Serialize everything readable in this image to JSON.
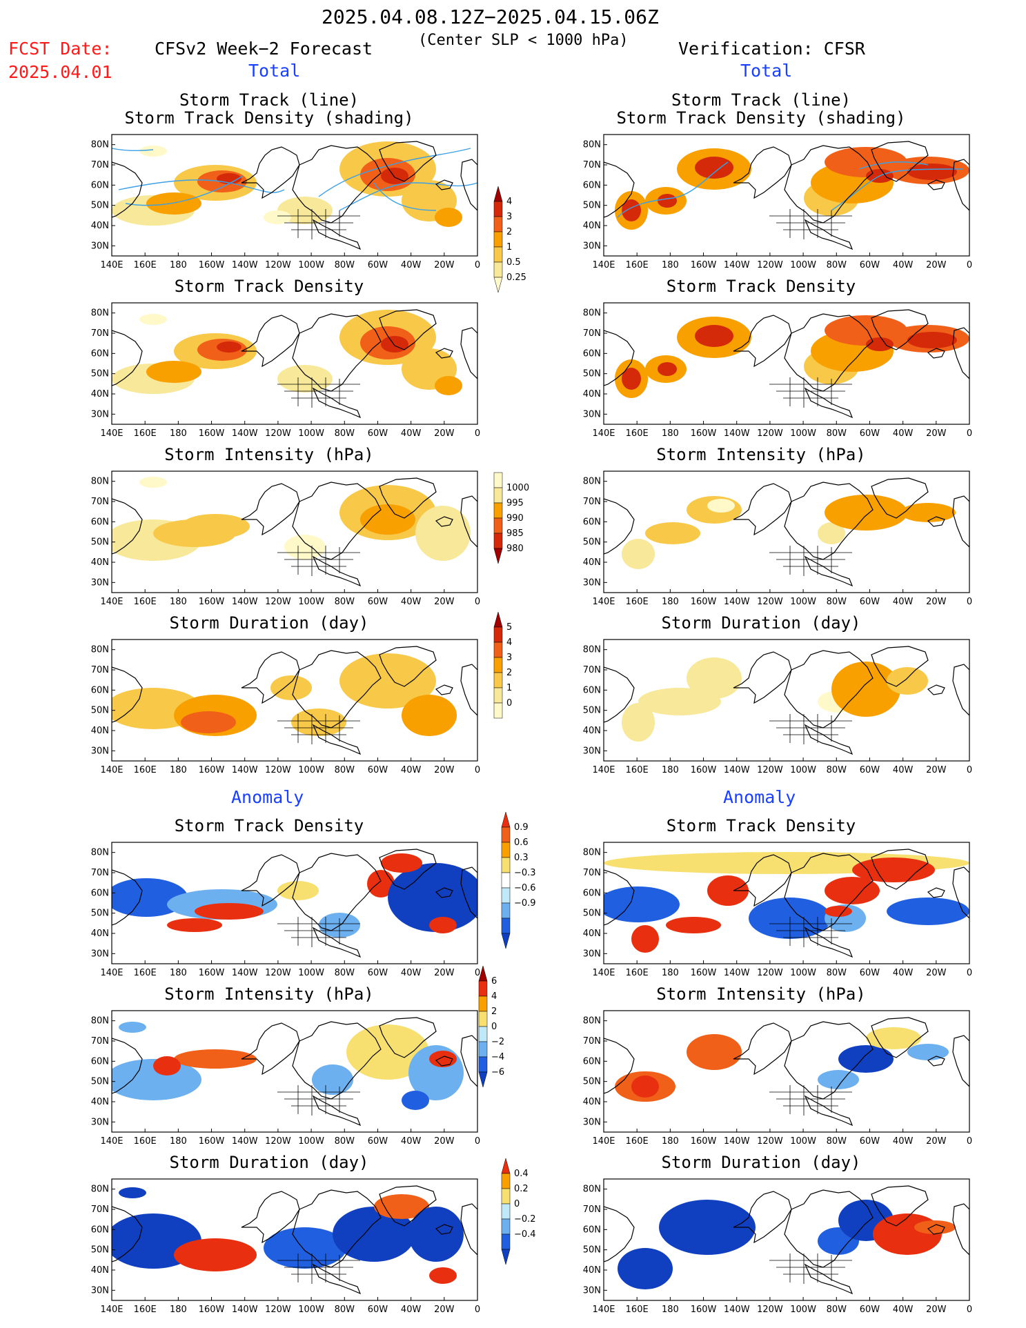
{
  "header": {
    "period": "2025.04.08.12Z−2025.04.15.06Z",
    "subtitle": "(Center SLP < 1000 hPa)",
    "fcst_label": "FCST Date:",
    "fcst_date": "2025.04.01",
    "left_title": "CFSv2 Week−2 Forecast",
    "right_title": "Verification: CFSR",
    "total_label": "Total",
    "anomaly_label": "Anomaly"
  },
  "panel_titles": {
    "track_line": "Storm Track (line)",
    "track_density_shading": "Storm Track Density (shading)",
    "track_density": "Storm Track Density",
    "intensity": "Storm Intensity (hPa)",
    "duration": "Storm Duration (day)"
  },
  "lon_labels": [
    "140E",
    "160E",
    "180",
    "160W",
    "140W",
    "120W",
    "100W",
    "80W",
    "60W",
    "40W",
    "20W",
    "0"
  ],
  "lat_labels": [
    "80N",
    "70N",
    "60N",
    "50N",
    "40N",
    "30N"
  ],
  "colorbars": {
    "density": {
      "labels": [
        "4",
        "3",
        "2",
        "1",
        "0.5",
        "0.25"
      ],
      "colors": [
        "#a00000",
        "#d42a0a",
        "#f06018",
        "#f8a000",
        "#f8c848",
        "#f8e89a",
        "#fff8c8"
      ]
    },
    "intensity": {
      "labels": [
        "1000",
        "995",
        "990",
        "985",
        "980"
      ],
      "colors": [
        "#fff8c8",
        "#f8e89a",
        "#f8a000",
        "#f06018",
        "#d42a0a",
        "#a00000"
      ]
    },
    "duration": {
      "labels": [
        "5",
        "4",
        "3",
        "2",
        "1",
        "0"
      ],
      "colors": [
        "#a00000",
        "#d42a0a",
        "#f06018",
        "#f8a000",
        "#f8c848",
        "#f8e89a",
        "#fff8c8"
      ]
    },
    "anom_density": {
      "labels": [
        "0.9",
        "0.6",
        "0.3",
        "−0.3",
        "−0.6",
        "−0.9"
      ],
      "colors": [
        "#e83010",
        "#f06018",
        "#f8a000",
        "#f8e070",
        "#ffffff",
        "#bfe9f8",
        "#6cb0f0",
        "#2060e0",
        "#1040c0"
      ]
    },
    "anom_intensity": {
      "labels": [
        "6",
        "4",
        "2",
        "0",
        "−2",
        "−4",
        "−6"
      ],
      "colors": [
        "#a00000",
        "#e83010",
        "#f8a000",
        "#f8e070",
        "#bfe9f8",
        "#6cb0f0",
        "#2060e0",
        "#1040c0"
      ]
    },
    "anom_duration": {
      "labels": [
        "0.4",
        "0.2",
        "0",
        "−0.2",
        "−0.4"
      ],
      "colors": [
        "#e83010",
        "#f8a000",
        "#f8e070",
        "#bfe9f8",
        "#6cb0f0",
        "#2060e0",
        "#1040c0"
      ]
    }
  },
  "colors": {
    "label_red": "#ff1a1a",
    "label_blue": "#1a40ff",
    "track_line": "#3aa0e8"
  }
}
